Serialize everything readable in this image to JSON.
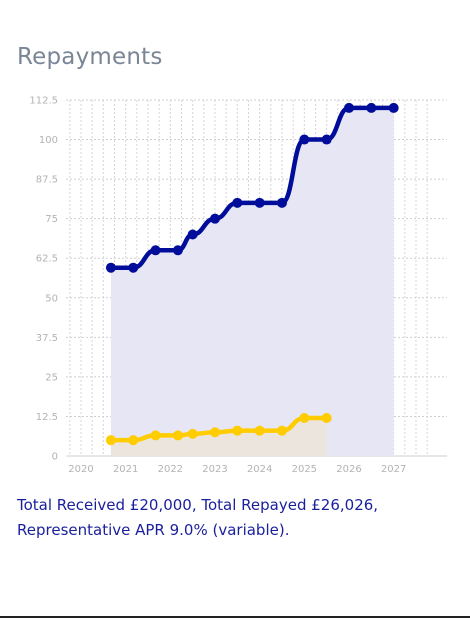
{
  "title": "Repayments",
  "summary": "Total Received £20,000, Total Repayed £26,026, Representative APR 9.0% (variable).",
  "chart_data": {
    "type": "area",
    "title": "Repayments",
    "xlabel": "",
    "ylabel": "",
    "xlim": [
      2020,
      2027.5
    ],
    "ylim": [
      0,
      112.5
    ],
    "yticks": [
      "0",
      "12.5",
      "25",
      "37.5",
      "50",
      "62.5",
      "75",
      "87.5",
      "100",
      "112.5"
    ],
    "xticks": [
      "2020",
      "2021",
      "2022",
      "2023",
      "2024",
      "2025",
      "2026",
      "2027"
    ],
    "grid": true,
    "legend": "none",
    "series": [
      {
        "color": "#000c9a",
        "fill": "#e6e6f5",
        "x": [
          2020.67,
          2021.17,
          2021.67,
          2022.17,
          2022.5,
          2023.0,
          2023.5,
          2024.0,
          2024.5,
          2025.0,
          2025.5,
          2026.0,
          2026.5,
          2027.0
        ],
        "y": [
          59.5,
          59.5,
          65,
          65,
          70,
          75,
          80,
          80,
          80,
          100,
          100,
          110,
          110,
          110
        ]
      },
      {
        "color": "#ffcc00",
        "fill": "#ece5dd",
        "x": [
          2020.67,
          2021.17,
          2021.67,
          2022.17,
          2022.5,
          2023.0,
          2023.5,
          2024.0,
          2024.5,
          2025.0,
          2025.5
        ],
        "y": [
          5,
          5,
          6.5,
          6.5,
          7,
          7.5,
          8,
          8,
          8,
          12,
          12
        ]
      }
    ]
  }
}
